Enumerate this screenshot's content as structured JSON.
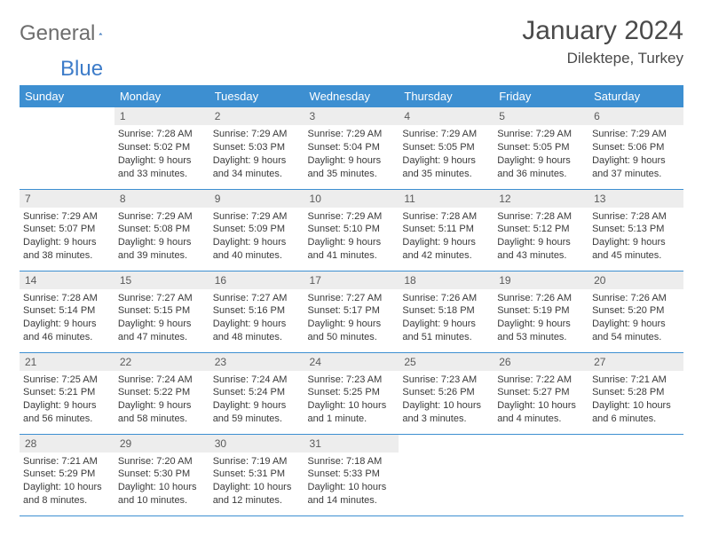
{
  "logo": {
    "part1": "General",
    "part2": "Blue"
  },
  "title": "January 2024",
  "location": "Dilektepe, Turkey",
  "colors": {
    "header_bg": "#3d8fd1",
    "header_text": "#ffffff",
    "daynum_bg": "#ededed",
    "border": "#3d8fd1",
    "logo_gray": "#6d6d6d",
    "logo_blue": "#3d7cc9"
  },
  "weekdays": [
    "Sunday",
    "Monday",
    "Tuesday",
    "Wednesday",
    "Thursday",
    "Friday",
    "Saturday"
  ],
  "weeks": [
    [
      null,
      {
        "n": "1",
        "sr": "Sunrise: 7:28 AM",
        "ss": "Sunset: 5:02 PM",
        "d1": "Daylight: 9 hours",
        "d2": "and 33 minutes."
      },
      {
        "n": "2",
        "sr": "Sunrise: 7:29 AM",
        "ss": "Sunset: 5:03 PM",
        "d1": "Daylight: 9 hours",
        "d2": "and 34 minutes."
      },
      {
        "n": "3",
        "sr": "Sunrise: 7:29 AM",
        "ss": "Sunset: 5:04 PM",
        "d1": "Daylight: 9 hours",
        "d2": "and 35 minutes."
      },
      {
        "n": "4",
        "sr": "Sunrise: 7:29 AM",
        "ss": "Sunset: 5:05 PM",
        "d1": "Daylight: 9 hours",
        "d2": "and 35 minutes."
      },
      {
        "n": "5",
        "sr": "Sunrise: 7:29 AM",
        "ss": "Sunset: 5:05 PM",
        "d1": "Daylight: 9 hours",
        "d2": "and 36 minutes."
      },
      {
        "n": "6",
        "sr": "Sunrise: 7:29 AM",
        "ss": "Sunset: 5:06 PM",
        "d1": "Daylight: 9 hours",
        "d2": "and 37 minutes."
      }
    ],
    [
      {
        "n": "7",
        "sr": "Sunrise: 7:29 AM",
        "ss": "Sunset: 5:07 PM",
        "d1": "Daylight: 9 hours",
        "d2": "and 38 minutes."
      },
      {
        "n": "8",
        "sr": "Sunrise: 7:29 AM",
        "ss": "Sunset: 5:08 PM",
        "d1": "Daylight: 9 hours",
        "d2": "and 39 minutes."
      },
      {
        "n": "9",
        "sr": "Sunrise: 7:29 AM",
        "ss": "Sunset: 5:09 PM",
        "d1": "Daylight: 9 hours",
        "d2": "and 40 minutes."
      },
      {
        "n": "10",
        "sr": "Sunrise: 7:29 AM",
        "ss": "Sunset: 5:10 PM",
        "d1": "Daylight: 9 hours",
        "d2": "and 41 minutes."
      },
      {
        "n": "11",
        "sr": "Sunrise: 7:28 AM",
        "ss": "Sunset: 5:11 PM",
        "d1": "Daylight: 9 hours",
        "d2": "and 42 minutes."
      },
      {
        "n": "12",
        "sr": "Sunrise: 7:28 AM",
        "ss": "Sunset: 5:12 PM",
        "d1": "Daylight: 9 hours",
        "d2": "and 43 minutes."
      },
      {
        "n": "13",
        "sr": "Sunrise: 7:28 AM",
        "ss": "Sunset: 5:13 PM",
        "d1": "Daylight: 9 hours",
        "d2": "and 45 minutes."
      }
    ],
    [
      {
        "n": "14",
        "sr": "Sunrise: 7:28 AM",
        "ss": "Sunset: 5:14 PM",
        "d1": "Daylight: 9 hours",
        "d2": "and 46 minutes."
      },
      {
        "n": "15",
        "sr": "Sunrise: 7:27 AM",
        "ss": "Sunset: 5:15 PM",
        "d1": "Daylight: 9 hours",
        "d2": "and 47 minutes."
      },
      {
        "n": "16",
        "sr": "Sunrise: 7:27 AM",
        "ss": "Sunset: 5:16 PM",
        "d1": "Daylight: 9 hours",
        "d2": "and 48 minutes."
      },
      {
        "n": "17",
        "sr": "Sunrise: 7:27 AM",
        "ss": "Sunset: 5:17 PM",
        "d1": "Daylight: 9 hours",
        "d2": "and 50 minutes."
      },
      {
        "n": "18",
        "sr": "Sunrise: 7:26 AM",
        "ss": "Sunset: 5:18 PM",
        "d1": "Daylight: 9 hours",
        "d2": "and 51 minutes."
      },
      {
        "n": "19",
        "sr": "Sunrise: 7:26 AM",
        "ss": "Sunset: 5:19 PM",
        "d1": "Daylight: 9 hours",
        "d2": "and 53 minutes."
      },
      {
        "n": "20",
        "sr": "Sunrise: 7:26 AM",
        "ss": "Sunset: 5:20 PM",
        "d1": "Daylight: 9 hours",
        "d2": "and 54 minutes."
      }
    ],
    [
      {
        "n": "21",
        "sr": "Sunrise: 7:25 AM",
        "ss": "Sunset: 5:21 PM",
        "d1": "Daylight: 9 hours",
        "d2": "and 56 minutes."
      },
      {
        "n": "22",
        "sr": "Sunrise: 7:24 AM",
        "ss": "Sunset: 5:22 PM",
        "d1": "Daylight: 9 hours",
        "d2": "and 58 minutes."
      },
      {
        "n": "23",
        "sr": "Sunrise: 7:24 AM",
        "ss": "Sunset: 5:24 PM",
        "d1": "Daylight: 9 hours",
        "d2": "and 59 minutes."
      },
      {
        "n": "24",
        "sr": "Sunrise: 7:23 AM",
        "ss": "Sunset: 5:25 PM",
        "d1": "Daylight: 10 hours",
        "d2": "and 1 minute."
      },
      {
        "n": "25",
        "sr": "Sunrise: 7:23 AM",
        "ss": "Sunset: 5:26 PM",
        "d1": "Daylight: 10 hours",
        "d2": "and 3 minutes."
      },
      {
        "n": "26",
        "sr": "Sunrise: 7:22 AM",
        "ss": "Sunset: 5:27 PM",
        "d1": "Daylight: 10 hours",
        "d2": "and 4 minutes."
      },
      {
        "n": "27",
        "sr": "Sunrise: 7:21 AM",
        "ss": "Sunset: 5:28 PM",
        "d1": "Daylight: 10 hours",
        "d2": "and 6 minutes."
      }
    ],
    [
      {
        "n": "28",
        "sr": "Sunrise: 7:21 AM",
        "ss": "Sunset: 5:29 PM",
        "d1": "Daylight: 10 hours",
        "d2": "and 8 minutes."
      },
      {
        "n": "29",
        "sr": "Sunrise: 7:20 AM",
        "ss": "Sunset: 5:30 PM",
        "d1": "Daylight: 10 hours",
        "d2": "and 10 minutes."
      },
      {
        "n": "30",
        "sr": "Sunrise: 7:19 AM",
        "ss": "Sunset: 5:31 PM",
        "d1": "Daylight: 10 hours",
        "d2": "and 12 minutes."
      },
      {
        "n": "31",
        "sr": "Sunrise: 7:18 AM",
        "ss": "Sunset: 5:33 PM",
        "d1": "Daylight: 10 hours",
        "d2": "and 14 minutes."
      },
      null,
      null,
      null
    ]
  ]
}
